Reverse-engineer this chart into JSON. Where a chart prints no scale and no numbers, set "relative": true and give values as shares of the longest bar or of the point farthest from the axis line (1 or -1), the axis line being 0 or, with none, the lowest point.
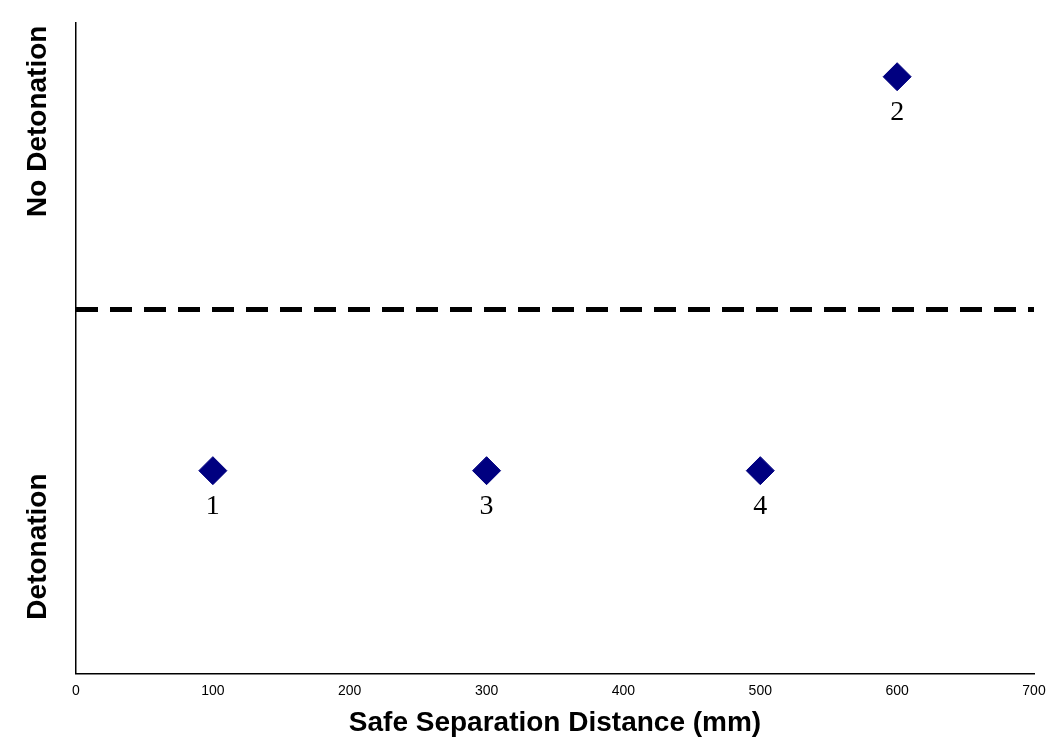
{
  "chart_data": {
    "type": "scatter",
    "xlabel": "Safe Separation Distance (mm)",
    "relative": true,
    "x": [
      100,
      300,
      500,
      600
    ],
    "values": [
      0.34,
      0.34,
      0.34,
      1
    ],
    "color": "#000080",
    "marker": "diamond",
    "xlim": [
      0,
      700
    ],
    "xticks": [
      0,
      100,
      200,
      300,
      400,
      500,
      600,
      700
    ],
    "ref_lines": [
      {
        "axis": "y",
        "value": 0.61,
        "color": "#000000",
        "line_style": "dashed"
      }
    ],
    "annotations": [
      "No Detonation",
      "Detonation",
      {
        "text": "1",
        "x": 100,
        "y": 0.34
      },
      {
        "text": "3",
        "x": 300,
        "y": 0.34
      },
      {
        "text": "4",
        "x": 500,
        "y": 0.34
      },
      {
        "text": "2",
        "x": 600,
        "y": 1
      }
    ],
    "grid": false,
    "legend": false
  }
}
